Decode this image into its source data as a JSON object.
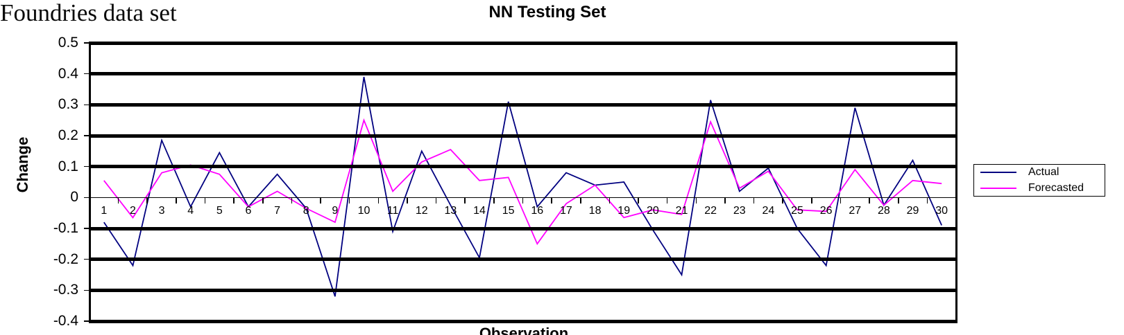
{
  "header": {
    "corner_label": "Foundries data set"
  },
  "chart_data": {
    "type": "line",
    "title": "NN Testing Set",
    "xlabel": "Observation",
    "ylabel": "Change",
    "categories": [
      "1",
      "2",
      "3",
      "4",
      "5",
      "6",
      "7",
      "8",
      "9",
      "10",
      "11",
      "12",
      "13",
      "14",
      "15",
      "16",
      "17",
      "18",
      "19",
      "20",
      "21",
      "22",
      "23",
      "24",
      "25",
      "26",
      "27",
      "28",
      "29",
      "30"
    ],
    "series": [
      {
        "name": "Actual",
        "color": "#000080",
        "values": [
          -0.08,
          -0.22,
          0.185,
          -0.03,
          0.145,
          -0.03,
          0.075,
          -0.035,
          -0.32,
          0.39,
          -0.11,
          0.15,
          -0.025,
          -0.195,
          0.31,
          -0.03,
          0.08,
          0.04,
          0.05,
          -0.105,
          -0.25,
          0.315,
          0.02,
          0.095,
          -0.1,
          -0.22,
          0.29,
          -0.025,
          0.12,
          -0.09
        ]
      },
      {
        "name": "Forecasted",
        "color": "#FF00FF",
        "values": [
          0.055,
          -0.065,
          0.08,
          0.105,
          0.075,
          -0.03,
          0.02,
          -0.035,
          -0.08,
          0.25,
          0.02,
          0.115,
          0.155,
          0.055,
          0.065,
          -0.15,
          -0.02,
          0.04,
          -0.065,
          -0.04,
          -0.055,
          0.245,
          0.03,
          0.085,
          -0.04,
          -0.045,
          0.09,
          -0.025,
          0.055,
          0.045
        ]
      }
    ],
    "ylim": [
      -0.4,
      0.5
    ],
    "y_ticks": [
      "0.5",
      "0.4",
      "0.3",
      "0.2",
      "0.1",
      "0",
      "-0.1",
      "-0.2",
      "-0.3",
      "-0.4"
    ],
    "grid": "horizontal-only",
    "gridline_color": "#000000",
    "legend_position": "right"
  }
}
